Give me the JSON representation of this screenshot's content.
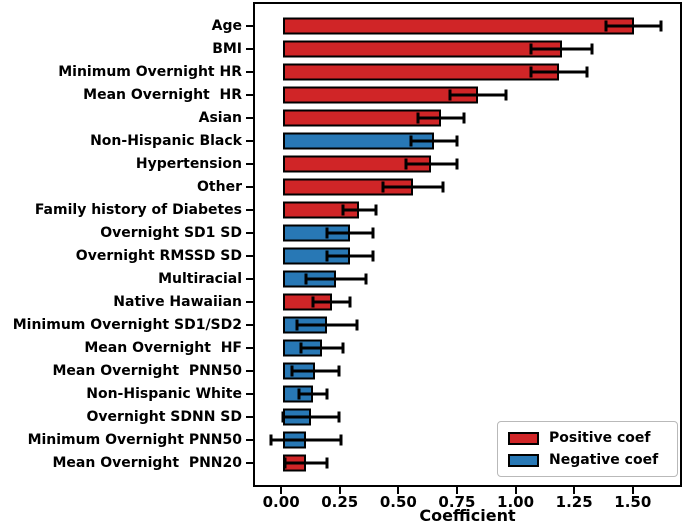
{
  "chart_data": {
    "type": "bar",
    "orientation": "horizontal",
    "xlabel": "Coefficient",
    "ylabel": "",
    "xlim": [
      -0.12,
      1.71
    ],
    "grid": false,
    "xticks": [
      "0.00",
      "0.25",
      "0.50",
      "0.75",
      "1.00",
      "1.25",
      "1.50"
    ],
    "xtick_values": [
      0.0,
      0.25,
      0.5,
      0.75,
      1.0,
      1.25,
      1.5
    ],
    "colors": {
      "positive": "#d02527",
      "negative": "#2878b5",
      "bar_edge": "#000000",
      "error_bar": "#000000"
    },
    "legend": {
      "position": "lower right",
      "entries": [
        {
          "label": "Positive coef",
          "sign": "positive",
          "color": "#d02527"
        },
        {
          "label": "Negative coef",
          "sign": "negative",
          "color": "#2878b5"
        }
      ]
    },
    "bars": [
      {
        "label": "Age",
        "value": 1.51,
        "error": 0.12,
        "sign": "positive"
      },
      {
        "label": "BMI",
        "value": 1.2,
        "error": 0.13,
        "sign": "positive"
      },
      {
        "label": "Minimum Overnight HR",
        "value": 1.19,
        "error": 0.12,
        "sign": "positive"
      },
      {
        "label": "Mean Overnight  HR",
        "value": 0.84,
        "error": 0.12,
        "sign": "positive"
      },
      {
        "label": "Asian",
        "value": 0.68,
        "error": 0.1,
        "sign": "positive"
      },
      {
        "label": "Non-Hispanic Black",
        "value": 0.65,
        "error": 0.1,
        "sign": "negative"
      },
      {
        "label": "Hypertension",
        "value": 0.64,
        "error": 0.11,
        "sign": "positive"
      },
      {
        "label": "Other",
        "value": 0.56,
        "error": 0.13,
        "sign": "positive"
      },
      {
        "label": "Family history of Diabetes",
        "value": 0.33,
        "error": 0.07,
        "sign": "positive"
      },
      {
        "label": "Overnight SD1 SD",
        "value": 0.29,
        "error": 0.1,
        "sign": "negative"
      },
      {
        "label": "Overnight RMSSD SD",
        "value": 0.29,
        "error": 0.1,
        "sign": "negative"
      },
      {
        "label": "Multiracial",
        "value": 0.23,
        "error": 0.13,
        "sign": "negative"
      },
      {
        "label": "Native Hawaiian",
        "value": 0.21,
        "error": 0.08,
        "sign": "positive"
      },
      {
        "label": "Minimum Overnight SD1/SD2",
        "value": 0.19,
        "error": 0.13,
        "sign": "negative"
      },
      {
        "label": "Mean Overnight  HF",
        "value": 0.17,
        "error": 0.09,
        "sign": "negative"
      },
      {
        "label": "Mean Overnight  PNN50",
        "value": 0.14,
        "error": 0.1,
        "sign": "negative"
      },
      {
        "label": "Non-Hispanic White",
        "value": 0.13,
        "error": 0.06,
        "sign": "negative"
      },
      {
        "label": "Overnight SDNN SD",
        "value": 0.12,
        "error": 0.12,
        "sign": "negative"
      },
      {
        "label": "Minimum Overnight PNN50",
        "value": 0.1,
        "error": 0.15,
        "sign": "negative"
      },
      {
        "label": "Mean Overnight  PNN20",
        "value": 0.1,
        "error": 0.09,
        "sign": "positive"
      }
    ]
  }
}
